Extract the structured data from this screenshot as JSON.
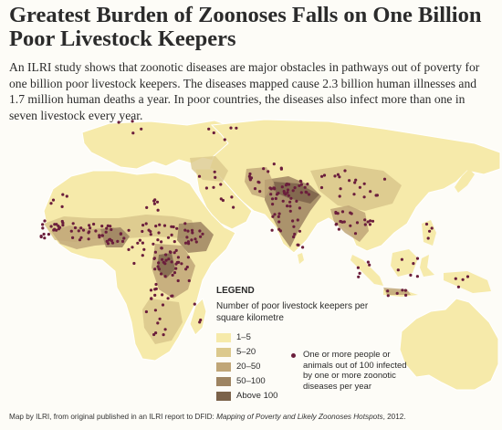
{
  "title": "Greatest Burden of Zoonoses Falls on One Billion Poor Livestock Keepers",
  "intro": "An ILRI study shows that zoonotic diseases are major obstacles in pathways out of poverty for one billion poor livestock keepers. The diseases mapped cause 2.3 billion human illnesses and 1.7 million human deaths a year. In poor countries, the diseases also infect more than one in seven livestock every year.",
  "legend": {
    "title": "LEGEND",
    "subtitle": "Number of poor livestock keepers per square kilometre",
    "classes": [
      {
        "label": "1–5",
        "color": "#f6eaaa"
      },
      {
        "label": "5–20",
        "color": "#dcc98d"
      },
      {
        "label": "20–50",
        "color": "#c0a678"
      },
      {
        "label": "50–100",
        "color": "#9e8462"
      },
      {
        "label": "Above 100",
        "color": "#7b624a"
      }
    ],
    "dot_text": "One or more people or animals out of 100 infected by one or more zoonotic diseases per year",
    "dot_color": "#6b1e3c"
  },
  "colors": {
    "ocean": "#fdfcf7",
    "land": "#f6eaaa",
    "border": "#ffffff"
  },
  "credit_prefix": "Map by ILRI, from original published in an ILRI report to DFID: ",
  "credit_italic": "Mapping of Poverty and Likely Zoonoses Hotspots",
  "credit_suffix": ", 2012."
}
